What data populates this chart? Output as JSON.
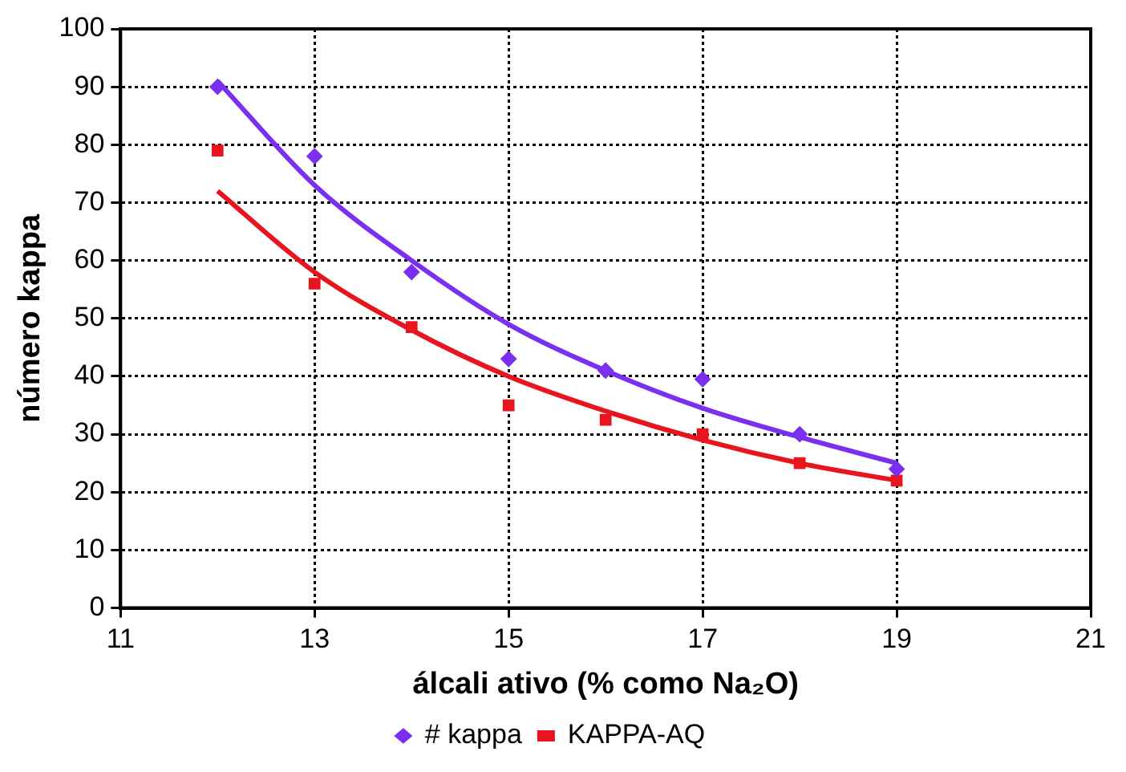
{
  "chart_data": {
    "type": "scatter",
    "xlabel": "álcali ativo (% como Na₂O)",
    "ylabel": "número kappa",
    "x": [
      12,
      13,
      14,
      15,
      16,
      17,
      18,
      19
    ],
    "series": [
      {
        "name": "# kappa",
        "color": "#7b2ff0",
        "marker": "diamond",
        "values": [
          90,
          78,
          58,
          43,
          41,
          39.5,
          30,
          24
        ]
      },
      {
        "name": "KAPPA-AQ",
        "color": "#e8141e",
        "marker": "square",
        "values": [
          79,
          56,
          48.5,
          35,
          32.5,
          30,
          25,
          22
        ]
      },
      {
        "type": "line",
        "color": "#7b2ff0",
        "marker": "none",
        "values": [
          91,
          73,
          60,
          49,
          41,
          34.5,
          29.5,
          25
        ]
      },
      {
        "type": "line",
        "color": "#e8141e",
        "marker": "none",
        "values": [
          72,
          58,
          48,
          40,
          34,
          29,
          25,
          22
        ]
      }
    ],
    "xlim": [
      11,
      21
    ],
    "xticks": [
      11,
      13,
      15,
      17,
      19,
      21
    ],
    "ylim": [
      0,
      100
    ],
    "yticks": [
      0,
      10,
      20,
      30,
      40,
      50,
      60,
      70,
      80,
      90,
      100
    ],
    "grid": true,
    "legend": "bottom"
  }
}
